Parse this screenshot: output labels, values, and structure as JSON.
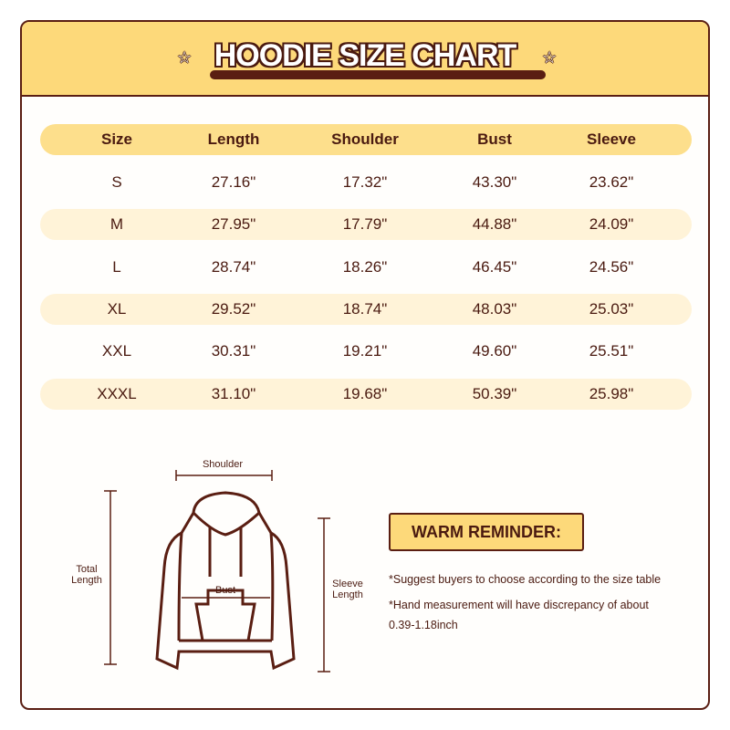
{
  "title": "HOODIE SIZE CHART",
  "table": {
    "headers": [
      "Size",
      "Length",
      "Shoulder",
      "Bust",
      "Sleeve"
    ],
    "rows": [
      [
        "S",
        "27.16\"",
        "17.32\"",
        "43.30\"",
        "23.62\""
      ],
      [
        "M",
        "27.95\"",
        "17.79\"",
        "44.88\"",
        "24.09\""
      ],
      [
        "L",
        "28.74\"",
        "18.26\"",
        "46.45\"",
        "24.56\""
      ],
      [
        "XL",
        "29.52\"",
        "18.74\"",
        "48.03\"",
        "25.03\""
      ],
      [
        "XXL",
        "30.31\"",
        "19.21\"",
        "49.60\"",
        "25.51\""
      ],
      [
        "XXXL",
        "31.10\"",
        "19.68\"",
        "50.39\"",
        "25.98\""
      ]
    ]
  },
  "diagram": {
    "shoulder": "Shoulder",
    "total_length": [
      "Total",
      "Length"
    ],
    "bust": "Bust",
    "sleeve_length": [
      "Sleeve",
      "Length"
    ]
  },
  "reminder": {
    "title": "WARM REMINDER:",
    "notes": [
      "*Suggest buyers to choose according to the size table",
      "*Hand measurement will have discrepancy of about",
      "0.39-1.18inch"
    ]
  },
  "colors": {
    "accent": "#fdd97a",
    "outline": "#5a1e12",
    "stripe": "#fff3d8"
  }
}
